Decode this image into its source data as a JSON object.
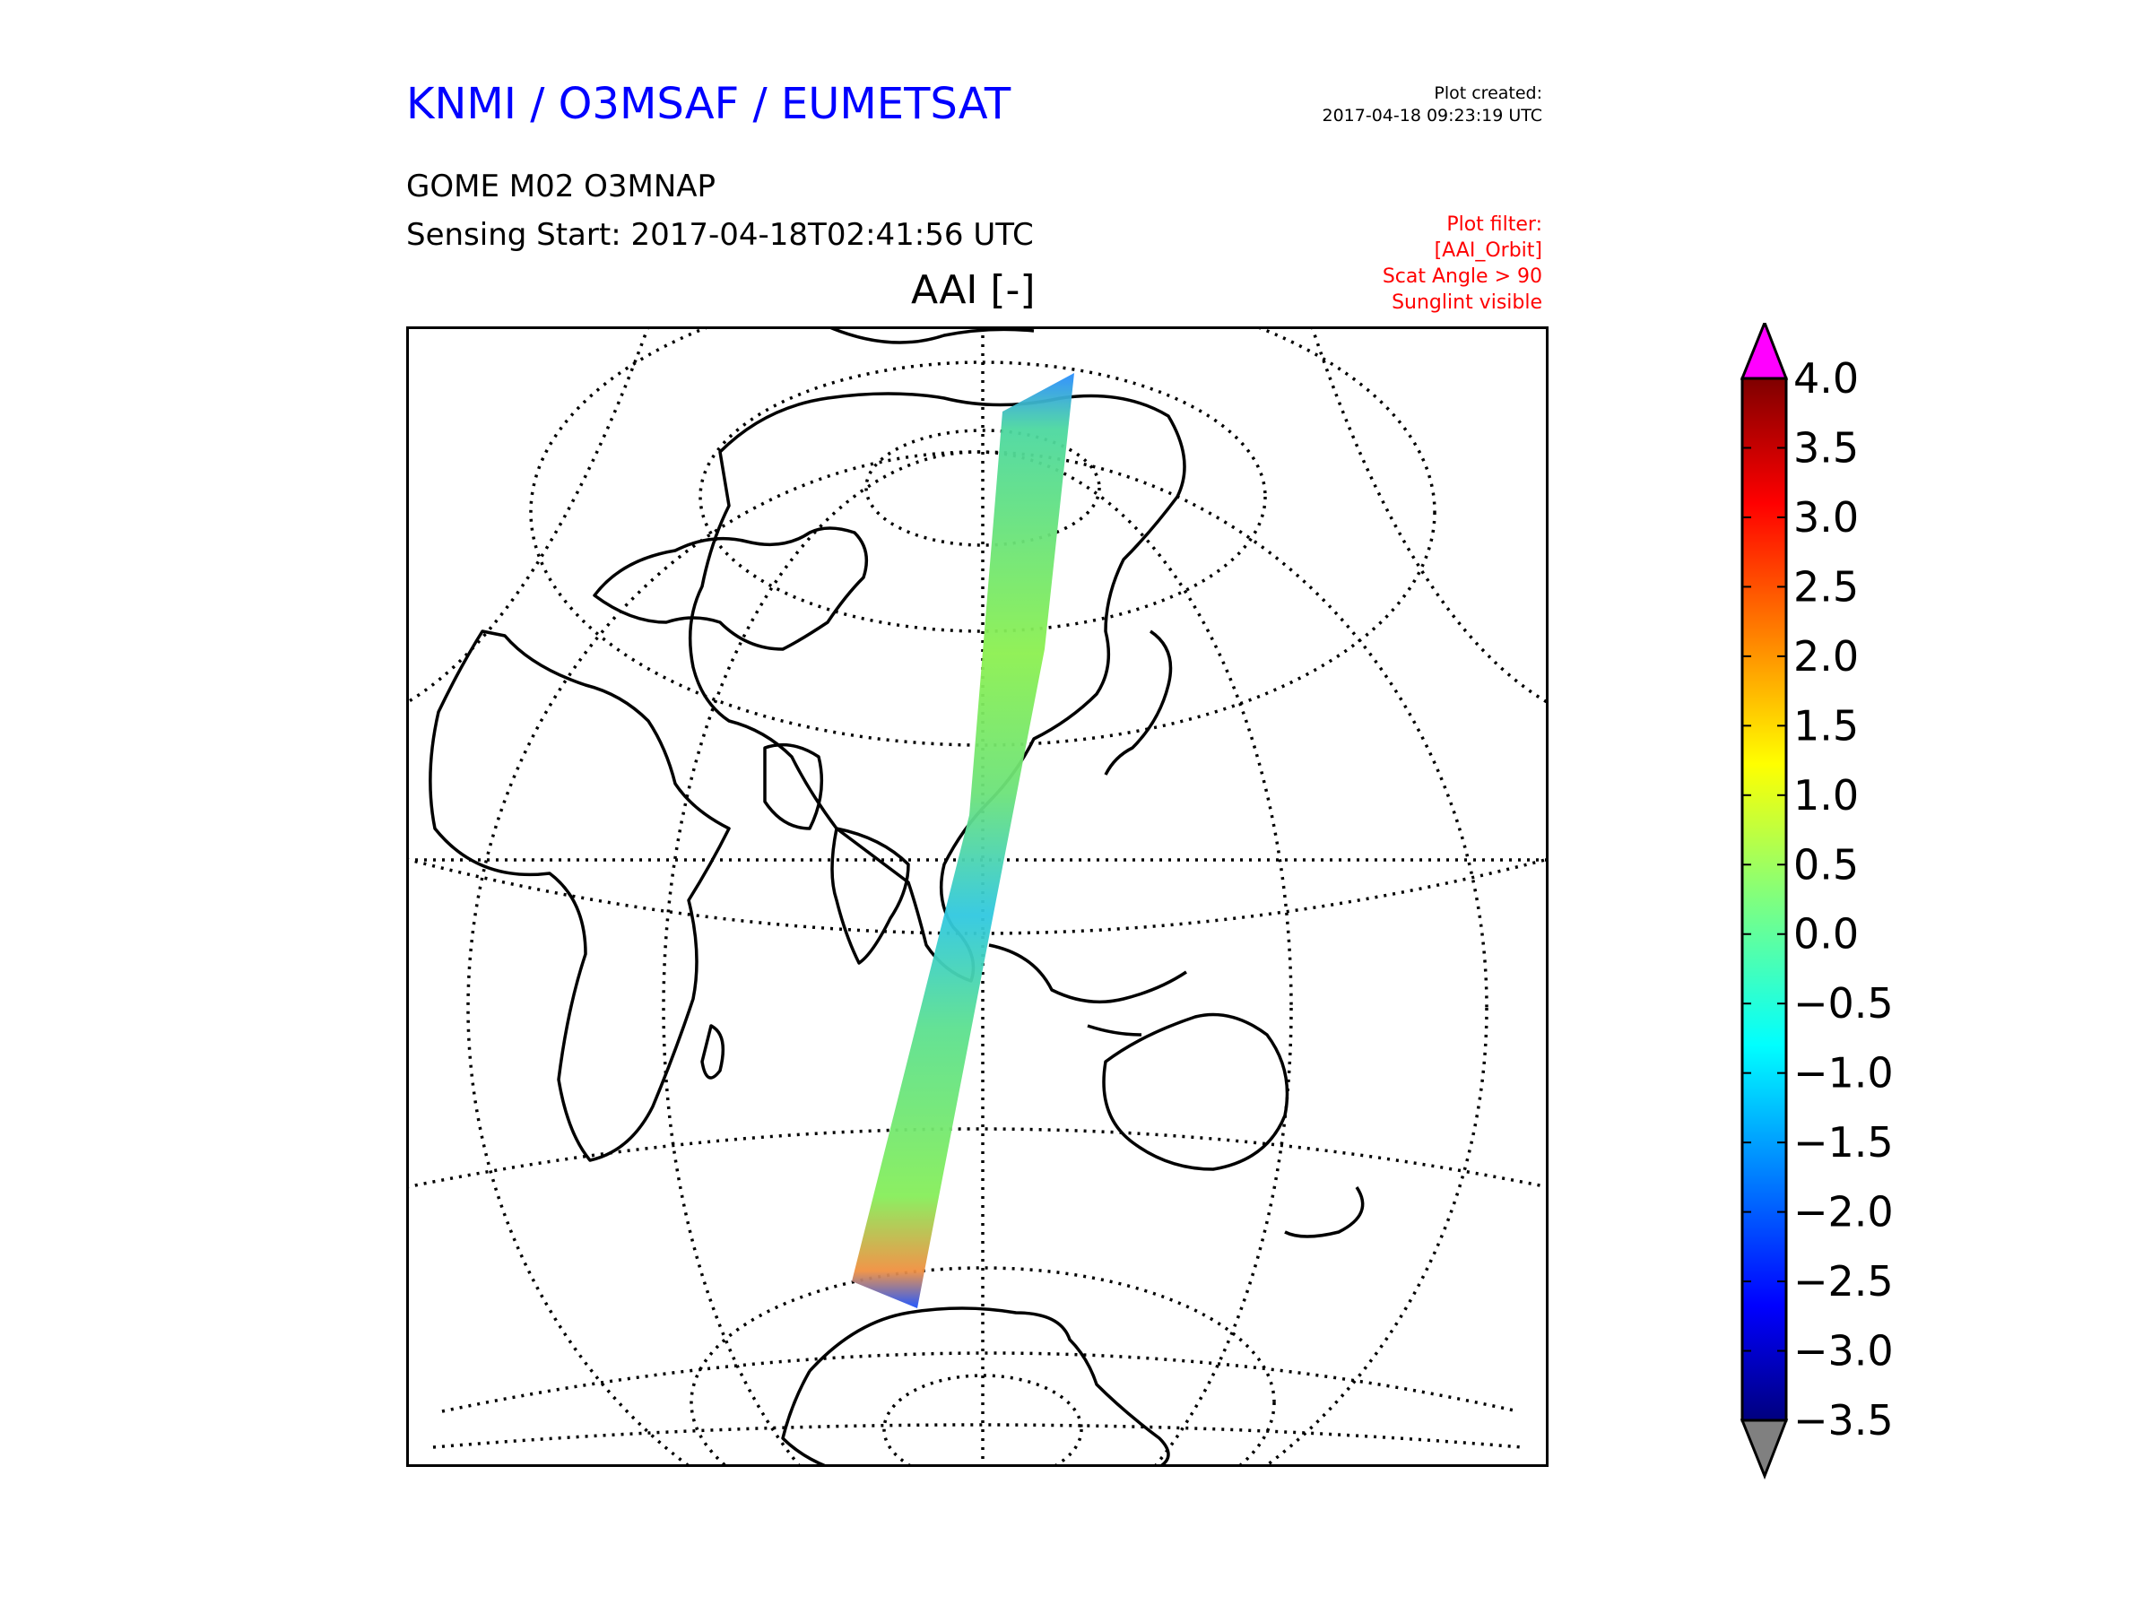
{
  "header": {
    "organization": "KNMI / O3MSAF / EUMETSAT",
    "created_label": "Plot created:",
    "created_value": "2017-04-18 09:23:19 UTC",
    "product": "GOME M02 O3MNAP",
    "sensing_start": "Sensing Start: 2017-04-18T02:41:56 UTC",
    "filters": [
      "Plot filter:",
      "[AAI_Orbit]",
      "Scat Angle > 90",
      "Sunglint visible"
    ]
  },
  "map": {
    "title": "AAI [-]",
    "projection": "orthographic",
    "graticule": "dotted",
    "swath_colormap": "jet"
  },
  "colorbar": {
    "min": -3.5,
    "max": 4.0,
    "ticks": [
      "4.0",
      "3.5",
      "3.0",
      "2.5",
      "2.0",
      "1.5",
      "1.0",
      "0.5",
      "0.0",
      "−0.5",
      "−1.0",
      "−1.5",
      "−2.0",
      "−2.5",
      "−3.0",
      "−3.5"
    ],
    "over_color": "#ff00ff",
    "under_color": "#808080"
  }
}
